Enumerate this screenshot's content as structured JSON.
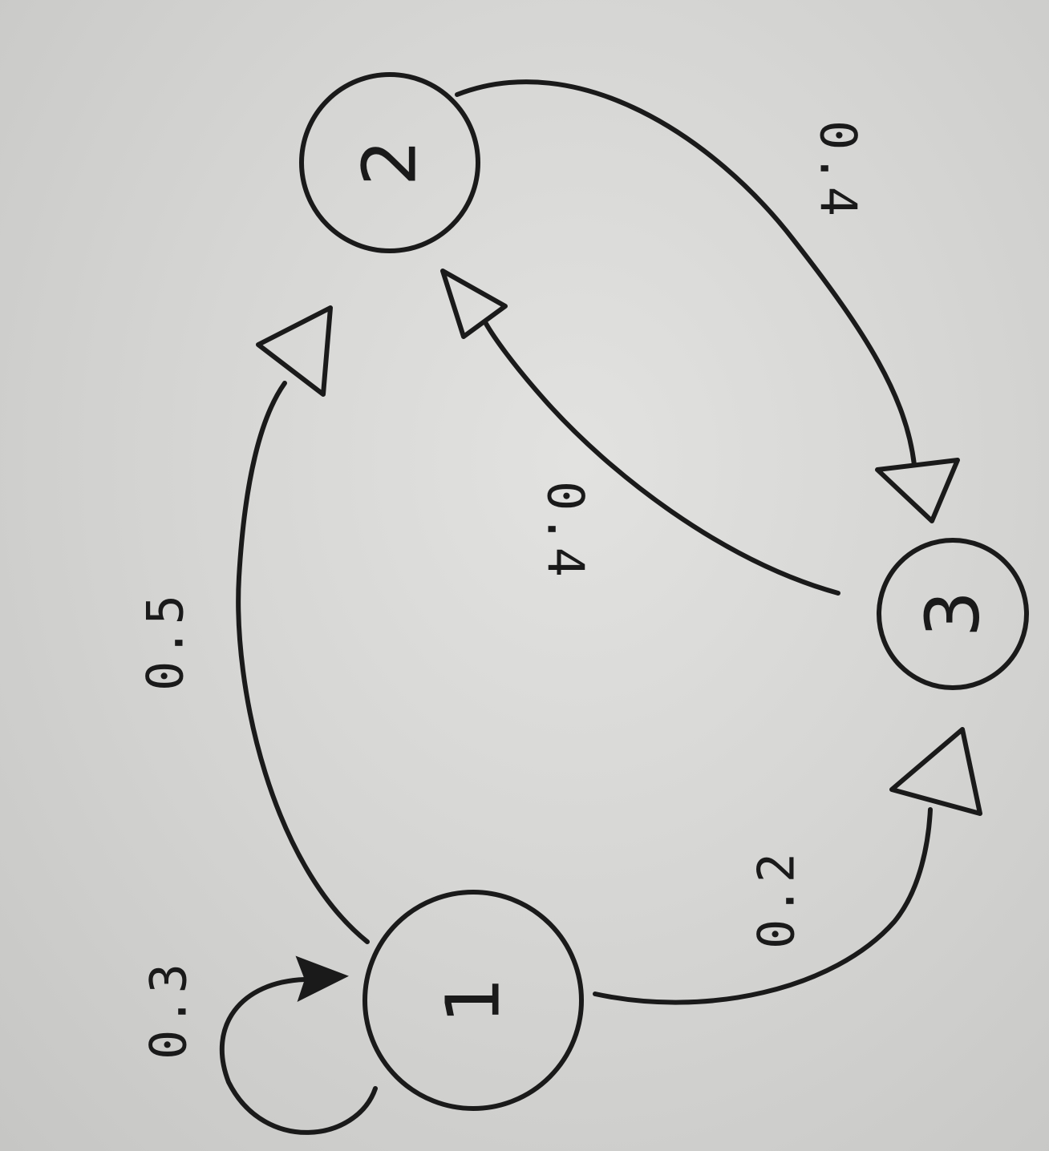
{
  "diagram": {
    "type": "state-transition-graph",
    "orientation": "rotated-90-clockwise",
    "nodes": [
      {
        "id": "n1",
        "label": "1"
      },
      {
        "id": "n2",
        "label": "2"
      },
      {
        "id": "n3",
        "label": "3"
      }
    ],
    "edges": [
      {
        "id": "e11",
        "from": "1",
        "to": "1",
        "label": "0.3"
      },
      {
        "id": "e12",
        "from": "1",
        "to": "2",
        "label": "0.5"
      },
      {
        "id": "e13",
        "from": "1",
        "to": "3",
        "label": "0.2"
      },
      {
        "id": "e23",
        "from": "2",
        "to": "3",
        "label": "0.4"
      },
      {
        "id": "e32",
        "from": "3",
        "to": "2",
        "label": "0.4"
      }
    ]
  },
  "colors": {
    "paper": "#d8d8d6",
    "ink": "#1a1a1a"
  }
}
